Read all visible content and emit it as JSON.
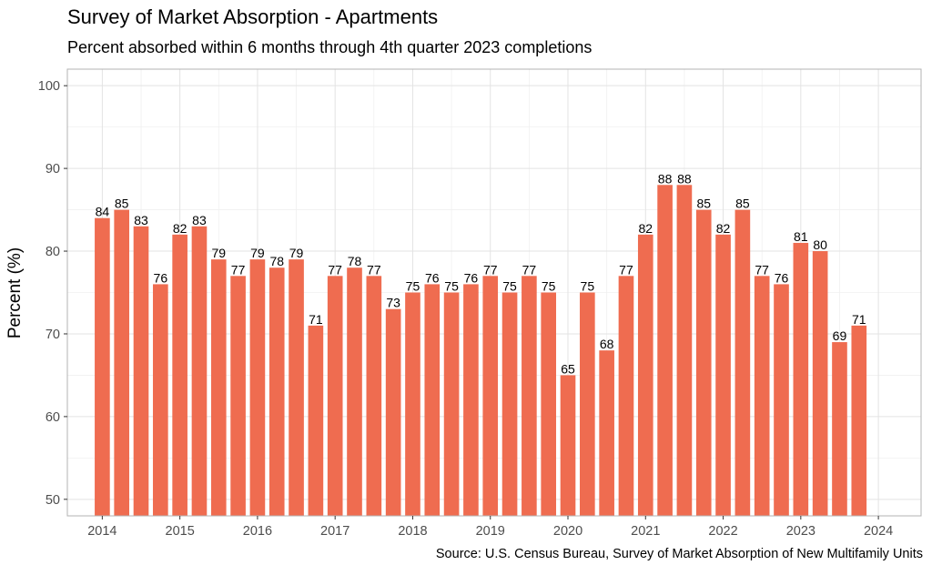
{
  "chart_data": {
    "type": "bar",
    "title": "Survey of Market Absorption - Apartments",
    "subtitle": "Percent absorbed within 6 months through 4th quarter 2023 completions",
    "ylabel": "Percent (%)",
    "xlabel": "",
    "caption": "Source: U.S. Census Bureau, Survey of Market Absorption of New Multifamily Units",
    "ylim": [
      48,
      102
    ],
    "xlim": [
      2013.55,
      2024.55
    ],
    "y_ticks": [
      50,
      60,
      70,
      80,
      90,
      100
    ],
    "x_ticks": [
      2014,
      2015,
      2016,
      2017,
      2018,
      2019,
      2020,
      2021,
      2022,
      2023,
      2024
    ],
    "grid": true,
    "bar_color": "#ef6c50",
    "series": [
      {
        "x": [
          2014.0,
          2014.25,
          2014.5,
          2014.75,
          2015.0,
          2015.25,
          2015.5,
          2015.75,
          2016.0,
          2016.25,
          2016.5,
          2016.75,
          2017.0,
          2017.25,
          2017.5,
          2017.75,
          2018.0,
          2018.25,
          2018.5,
          2018.75,
          2019.0,
          2019.25,
          2019.5,
          2019.75,
          2020.0,
          2020.25,
          2020.5,
          2020.75,
          2021.0,
          2021.25,
          2021.5,
          2021.75,
          2022.0,
          2022.25,
          2022.5,
          2022.75,
          2023.0,
          2023.25,
          2023.5,
          2023.75
        ],
        "values": [
          84,
          85,
          83,
          76,
          82,
          83,
          79,
          77,
          79,
          78,
          79,
          71,
          77,
          78,
          77,
          73,
          75,
          76,
          75,
          76,
          77,
          75,
          77,
          75,
          65,
          75,
          68,
          77,
          82,
          88,
          88,
          85,
          82,
          85,
          77,
          76,
          81,
          80,
          69,
          71
        ]
      }
    ]
  }
}
